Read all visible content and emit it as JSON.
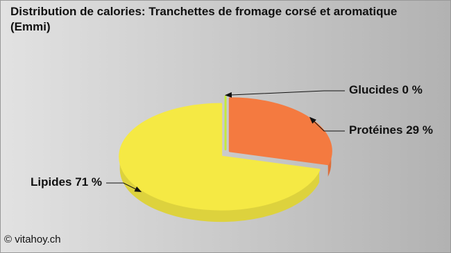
{
  "chart_data": {
    "type": "pie",
    "title": "Distribution de calories: Tranchettes de fromage corsé et aromatique  (Emmi)",
    "categories": [
      "Glucides",
      "Protéines",
      "Lipides"
    ],
    "values": [
      0,
      29,
      71
    ],
    "value_labels": [
      "0 %",
      "29 %",
      "71 %"
    ],
    "colors": [
      "#c6ea3a",
      "#f47a40",
      "#f5e944"
    ],
    "footer": "© vitahoy.ch"
  }
}
